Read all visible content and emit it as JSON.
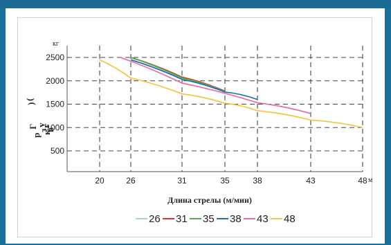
{
  "chart_data": {
    "type": "line",
    "title": "",
    "xlabel": "Длина стрелы (м/мин)",
    "x_unit": "м",
    "ylabel_fragments": [
      "Г",
      "р",
      "у",
      "з",
      "(",
      ")",
      "в",
      "к",
      "г"
    ],
    "y_unit": "кг",
    "x_ticks": [
      20,
      26,
      31,
      35,
      38,
      43,
      48
    ],
    "y_ticks": [
      500,
      1000,
      1500,
      2000,
      2500
    ],
    "y_tick_labels": [
      "500",
      "1000",
      "1500",
      "2000",
      "2500"
    ],
    "xlim": [
      16,
      48
    ],
    "ylim": [
      0,
      2600
    ],
    "grid": true,
    "legend_position": "bottom",
    "series": [
      {
        "name": "26",
        "color": "#9fd6c5",
        "x": [
          26,
          31
        ],
        "y": [
          2500,
          2050
        ]
      },
      {
        "name": "31",
        "color": "#e0302a",
        "x": [
          26,
          31,
          35
        ],
        "y": [
          2500,
          2080,
          1780
        ]
      },
      {
        "name": "35",
        "color": "#49b34a",
        "x": [
          26,
          31,
          35
        ],
        "y": [
          2500,
          2060,
          1770
        ]
      },
      {
        "name": "38",
        "color": "#1f6fae",
        "x": [
          26,
          31,
          35,
          38
        ],
        "y": [
          2450,
          2030,
          1760,
          1600
        ]
      },
      {
        "name": "43",
        "color": "#e86aa8",
        "x": [
          24,
          31,
          38,
          43
        ],
        "y": [
          2500,
          1950,
          1530,
          1300
        ]
      },
      {
        "name": "48",
        "color": "#f5c542",
        "x": [
          20,
          26,
          31,
          35,
          38,
          43,
          48
        ],
        "y": [
          2450,
          2060,
          1720,
          1520,
          1360,
          1160,
          1000
        ]
      }
    ]
  }
}
